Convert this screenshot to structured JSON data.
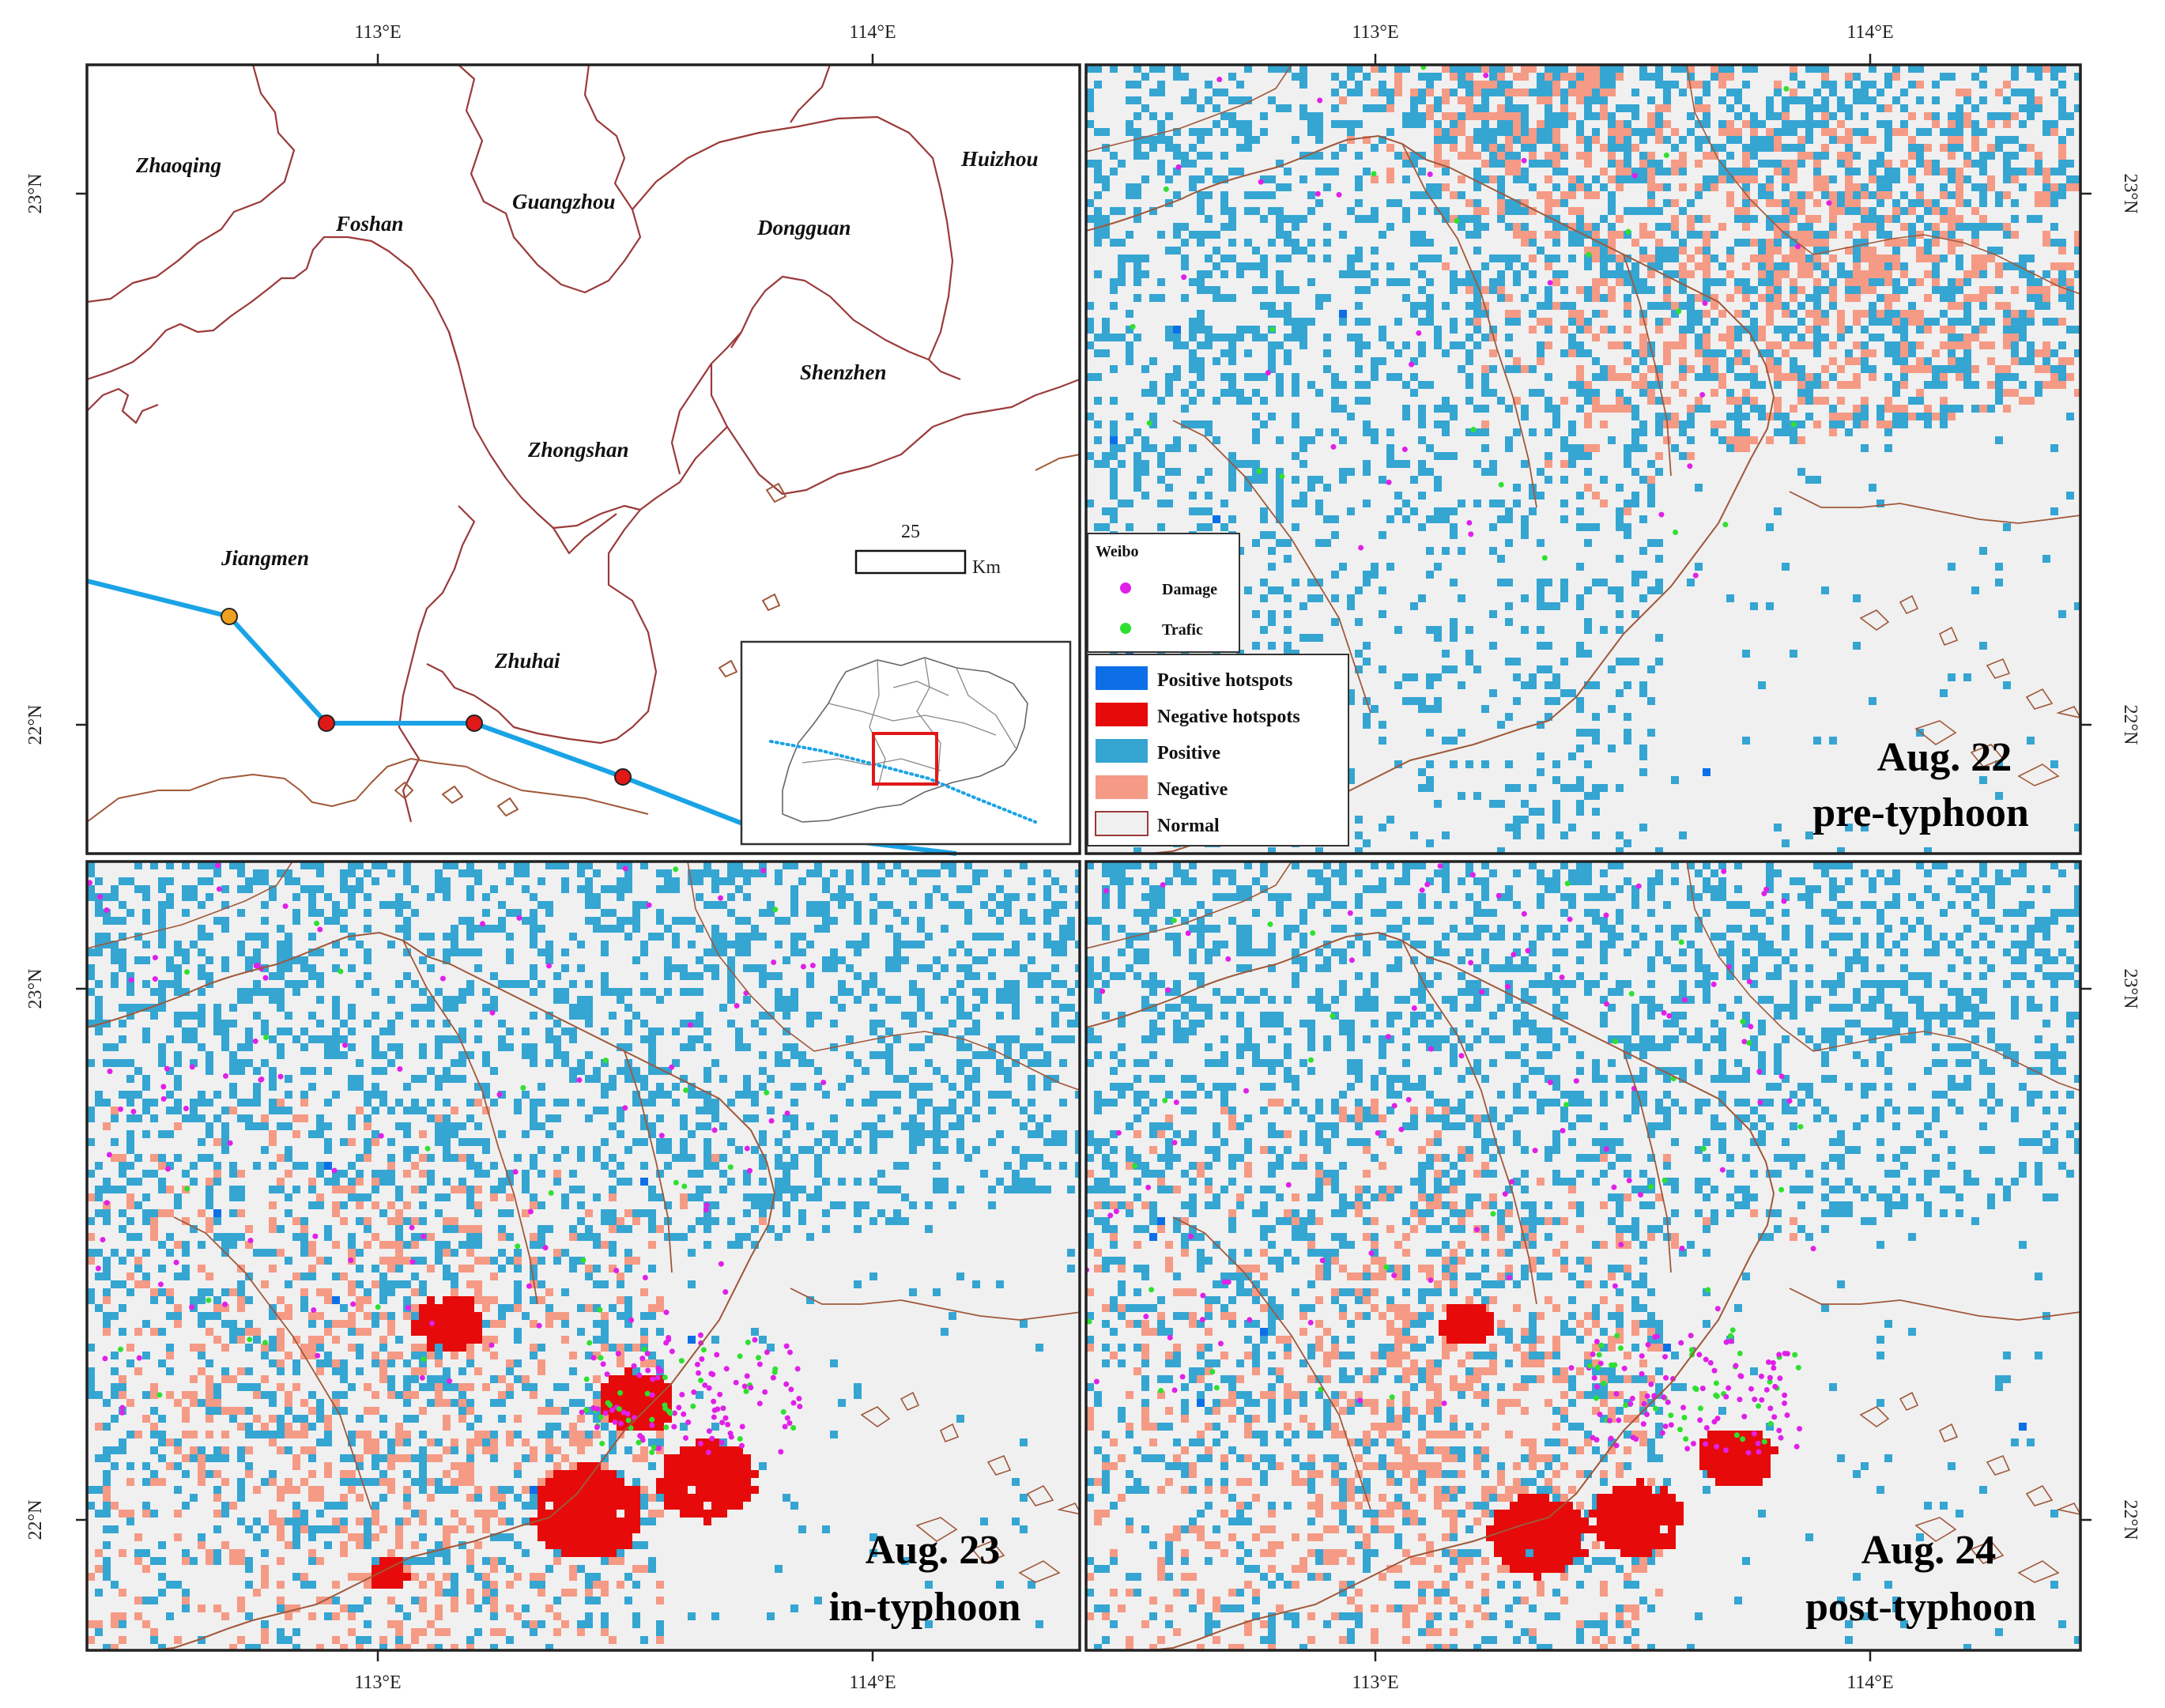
{
  "axes": {
    "top_lon": [
      "113°E",
      "114°E"
    ],
    "bottom_lon": [
      "113°E",
      "114°E"
    ],
    "left_lat": [
      "23°N",
      "22°N",
      "23°N",
      "22°N"
    ],
    "right_lat": [
      "23°N",
      "22°N",
      "23°N",
      "22°N"
    ]
  },
  "overview": {
    "cities": [
      "Zhaoqing",
      "Foshan",
      "Guangzhou",
      "Dongguan",
      "Huizhou",
      "Shenzhen",
      "Zhongshan",
      "Jiangmen",
      "Zhuhai"
    ],
    "scale_label": "25",
    "scale_unit": "Km",
    "track_color": "#1aa3e6",
    "track_points": [
      {
        "color": "#f0a020"
      },
      {
        "color": "#e01818"
      },
      {
        "color": "#e01818"
      },
      {
        "color": "#e01818"
      }
    ]
  },
  "panels": [
    {
      "title_line1": "Aug. 22",
      "title_line2": "pre-typhoon"
    },
    {
      "title_line1": "Aug. 23",
      "title_line2": "in-typhoon"
    },
    {
      "title_line1": "Aug. 24",
      "title_line2": "post-typhoon"
    }
  ],
  "legend": {
    "weibo_title": "Weibo",
    "weibo_items": [
      {
        "label": "Damage",
        "color": "#e020e8"
      },
      {
        "label": "Trafic",
        "color": "#30e030"
      }
    ],
    "classes": [
      {
        "label": "Positive hotspots",
        "color": "#0d6fe8"
      },
      {
        "label": "Negative hotspots",
        "color": "#e60a0a"
      },
      {
        "label": "Positive",
        "color": "#35a5d2"
      },
      {
        "label": "Negative",
        "color": "#f59a85"
      },
      {
        "label": "Normal",
        "color": "#f0f0f0"
      }
    ]
  },
  "colors": {
    "boundary": "#9b3a3a",
    "coast": "#a0583a",
    "panel_background": "#f0f0f0"
  }
}
